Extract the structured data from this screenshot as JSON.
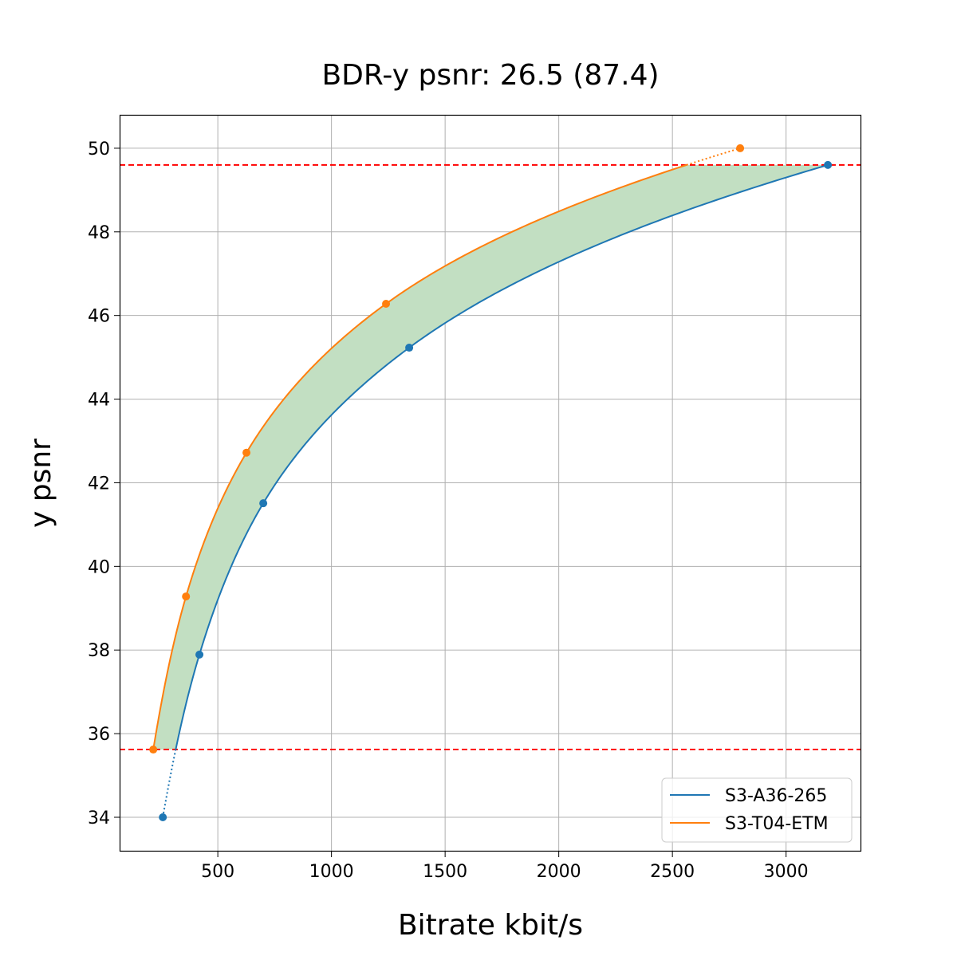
{
  "chart_data": {
    "type": "line",
    "title": "BDR-y psnr: 26.5 (87.4)",
    "xlabel": "Bitrate kbit/s",
    "ylabel": "y psnr",
    "xlim": [
      68,
      3331
    ],
    "ylim": [
      33.18,
      50.78
    ],
    "xticks": [
      500,
      1000,
      1500,
      2000,
      2500,
      3000
    ],
    "yticks": [
      34,
      36,
      38,
      40,
      42,
      44,
      46,
      48,
      50
    ],
    "grid": true,
    "legend_position": "lower-right",
    "series": [
      {
        "name": "S3-A36-265",
        "color": "#1f77b4",
        "x": [
          258,
          419,
          700,
          1342,
          3184
        ],
        "y": [
          34.0,
          37.89,
          41.51,
          45.23,
          49.6
        ]
      },
      {
        "name": "S3-T04-ETM",
        "color": "#ff7f0e",
        "x": [
          216,
          360,
          626,
          1240,
          2798
        ],
        "y": [
          35.62,
          39.28,
          42.72,
          46.28,
          50.0
        ]
      }
    ],
    "hlines": [
      {
        "y": 49.6,
        "color": "#ff0000",
        "style": "dashed"
      },
      {
        "y": 35.62,
        "color": "#ff0000",
        "style": "dashed"
      }
    ],
    "fill_color": "#c2dfc2"
  }
}
